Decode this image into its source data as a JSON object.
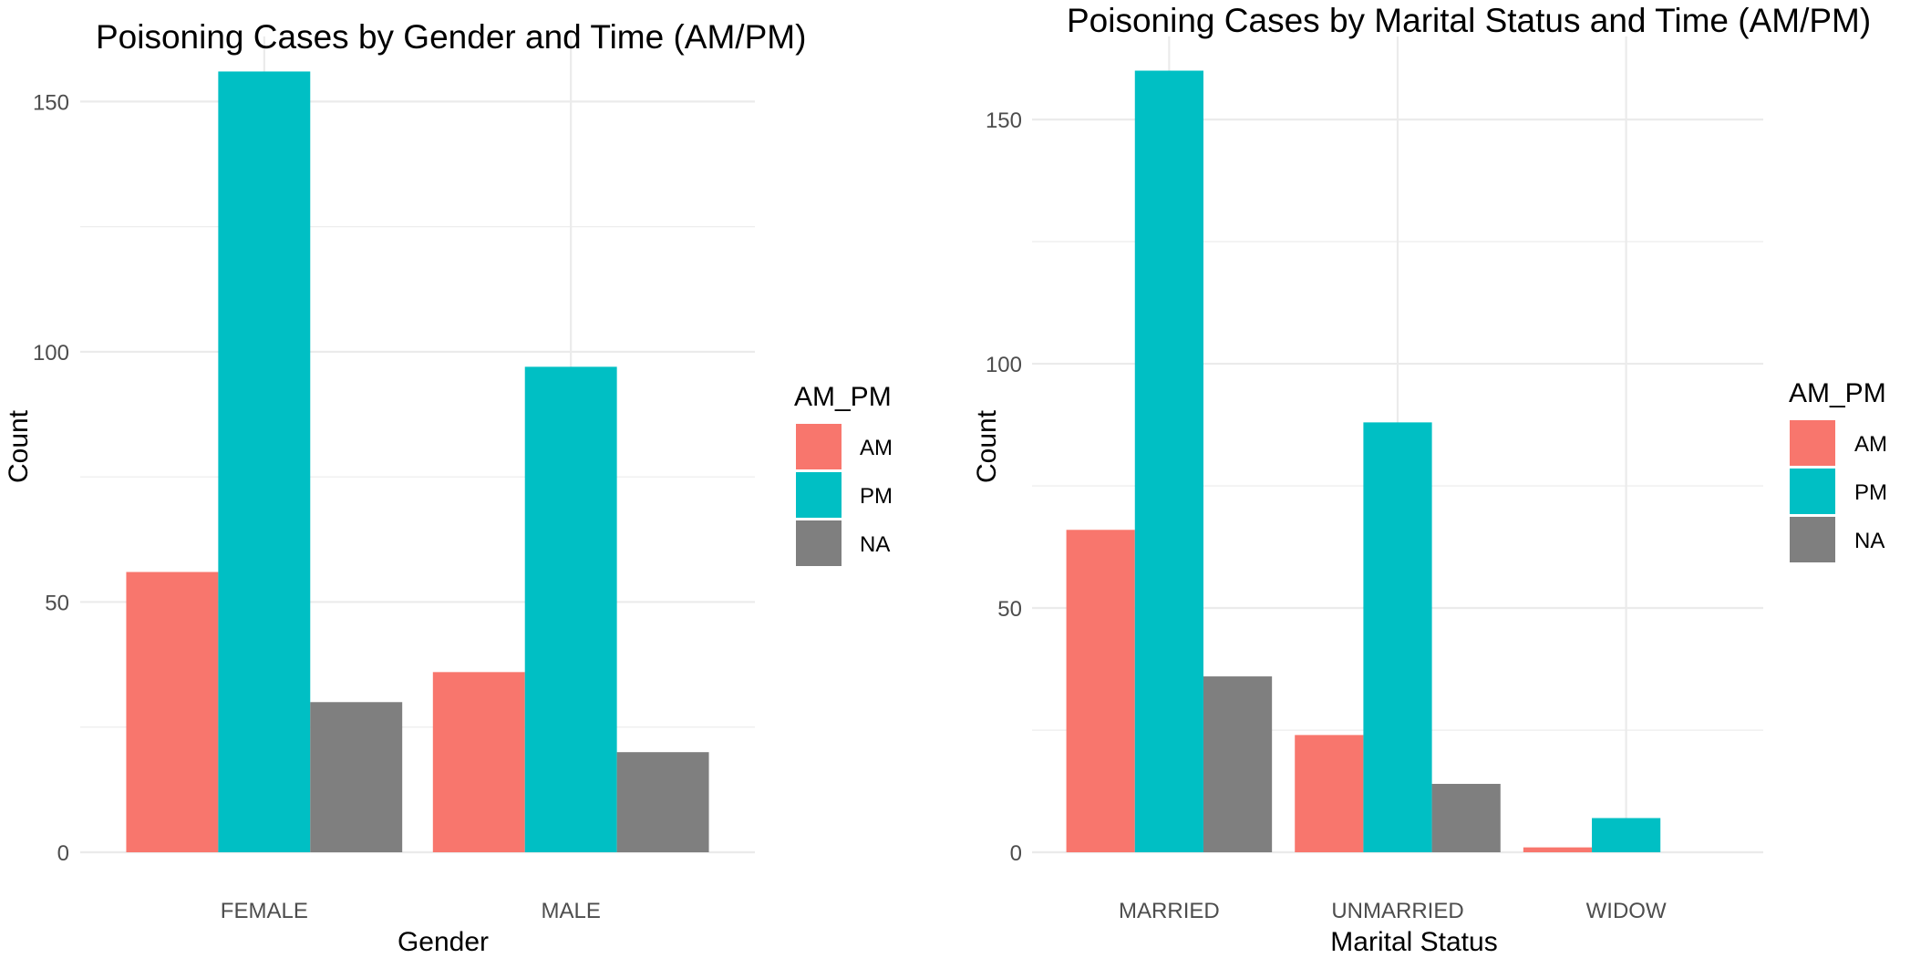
{
  "chart_data": [
    {
      "type": "bar",
      "title": "Poisoning Cases by Gender and Time (AM/PM)",
      "xlabel": "Gender",
      "ylabel": "Count",
      "categories": [
        "FEMALE",
        "MALE"
      ],
      "series": [
        {
          "name": "AM",
          "color": "#F8766D",
          "values": [
            56,
            36
          ]
        },
        {
          "name": "PM",
          "color": "#00BFC4",
          "values": [
            156,
            97
          ]
        },
        {
          "name": "NA",
          "color": "#7F7F7F",
          "values": [
            30,
            20
          ]
        }
      ],
      "ylim": [
        0,
        163
      ],
      "yticks": [
        0,
        50,
        100,
        150
      ],
      "grid": true,
      "legend": {
        "title": "AM_PM",
        "placement": "right"
      }
    },
    {
      "type": "bar",
      "title": "Poisoning Cases by Marital Status and Time (AM/PM)",
      "xlabel": "Marital Status",
      "ylabel": "Count",
      "categories": [
        "MARRIED",
        "UNMARRIED",
        "WIDOW"
      ],
      "series": [
        {
          "name": "AM",
          "color": "#F8766D",
          "values": [
            66,
            24,
            1
          ]
        },
        {
          "name": "PM",
          "color": "#00BFC4",
          "values": [
            160,
            88,
            7
          ]
        },
        {
          "name": "NA",
          "color": "#7F7F7F",
          "values": [
            36,
            14,
            null
          ]
        }
      ],
      "ylim": [
        0,
        167
      ],
      "yticks": [
        0,
        50,
        100,
        150
      ],
      "grid": true,
      "legend": {
        "title": "AM_PM",
        "placement": "right"
      }
    }
  ]
}
